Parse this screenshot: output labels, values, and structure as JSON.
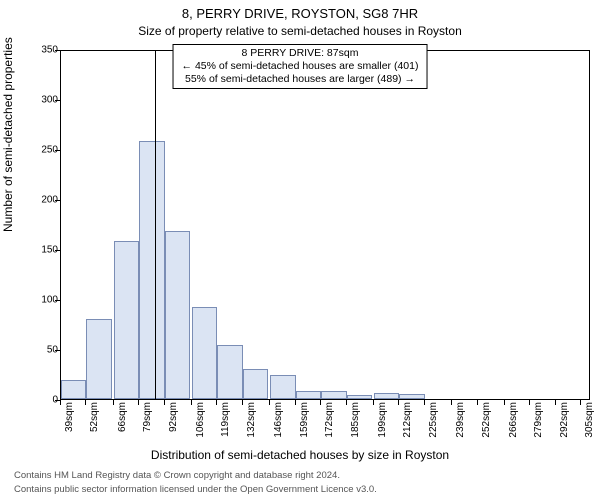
{
  "title_main": "8, PERRY DRIVE, ROYSTON, SG8 7HR",
  "title_sub": "Size of property relative to semi-detached houses in Royston",
  "annotation": {
    "line1": "8 PERRY DRIVE: 87sqm",
    "line2": "← 45% of semi-detached houses are smaller (401)",
    "line3": "55% of semi-detached houses are larger (489) →"
  },
  "chart": {
    "type": "histogram",
    "ylabel": "Number of semi-detached properties",
    "xlabel": "Distribution of semi-detached houses by size in Royston",
    "ylim": [
      0,
      350
    ],
    "ytick_step": 50,
    "yticks": [
      0,
      50,
      100,
      150,
      200,
      250,
      300,
      350
    ],
    "xrange_start": 39,
    "xrange_end": 310,
    "xtick_step": 13,
    "xticks": [
      39,
      52,
      66,
      79,
      92,
      106,
      119,
      132,
      146,
      159,
      172,
      185,
      199,
      212,
      225,
      239,
      252,
      266,
      279,
      292,
      305
    ],
    "xtick_suffix": "sqm",
    "marker_value": 87,
    "bars": [
      {
        "x": 39,
        "v": 19
      },
      {
        "x": 52,
        "v": 80
      },
      {
        "x": 66,
        "v": 158
      },
      {
        "x": 79,
        "v": 258
      },
      {
        "x": 92,
        "v": 168
      },
      {
        "x": 106,
        "v": 92
      },
      {
        "x": 119,
        "v": 54
      },
      {
        "x": 132,
        "v": 30
      },
      {
        "x": 146,
        "v": 24
      },
      {
        "x": 159,
        "v": 8
      },
      {
        "x": 172,
        "v": 8
      },
      {
        "x": 185,
        "v": 4
      },
      {
        "x": 199,
        "v": 6
      },
      {
        "x": 212,
        "v": 5
      },
      {
        "x": 225,
        "v": 0
      },
      {
        "x": 239,
        "v": 0
      },
      {
        "x": 252,
        "v": 0
      },
      {
        "x": 266,
        "v": 0
      },
      {
        "x": 279,
        "v": 0
      },
      {
        "x": 292,
        "v": 0
      }
    ],
    "bar_fill": "#dbe4f3",
    "bar_stroke": "#7a8db5",
    "background_color": "#ffffff",
    "axis_color": "#000000",
    "label_fontsize": 12,
    "tick_fontsize": 10,
    "title_fontsize": 13
  },
  "footer1": "Contains HM Land Registry data © Crown copyright and database right 2024.",
  "footer2": "Contains public sector information licensed under the Open Government Licence v3.0."
}
